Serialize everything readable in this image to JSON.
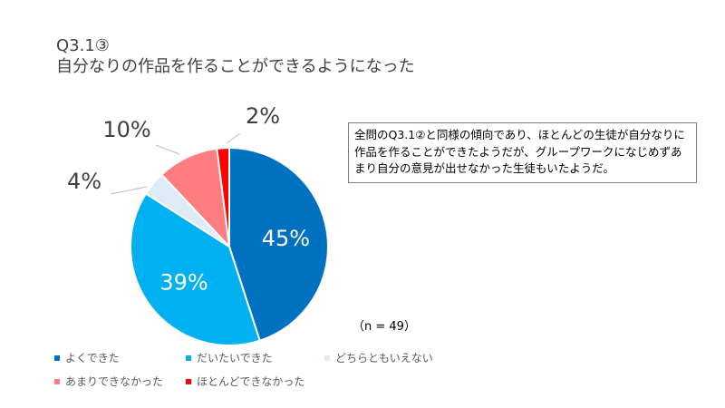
{
  "title": {
    "line1": "Q3.1③",
    "line2": "自分なりの作品を作ることができるようになった"
  },
  "note": "全問のQ3.1②と同様の傾向であり、ほとんどの生徒が自分なりに作品を作ることができたようだが、グループワークになじめずあまり自分の意見が出せなかった生徒もいたようだ。",
  "sample_size_label": "（n = 49）",
  "chart_data": {
    "type": "pie",
    "title": "自分なりの作品を作ることができるようになった",
    "n": 49,
    "start_angle_deg": 0,
    "direction": "clockwise",
    "slices": [
      {
        "label": "よくできた",
        "value": 45,
        "display": "45%",
        "color": "#0070c0",
        "label_inside": true
      },
      {
        "label": "だいたいできた",
        "value": 39,
        "display": "39%",
        "color": "#00b0f0",
        "label_inside": true
      },
      {
        "label": "どちらともいえない",
        "value": 4,
        "display": "4%",
        "color": "#ddebf7",
        "label_inside": false
      },
      {
        "label": "あまりできなかった",
        "value": 10,
        "display": "10%",
        "color": "#ff7c80",
        "label_inside": false
      },
      {
        "label": "ほとんどできなかった",
        "value": 2,
        "display": "2%",
        "color": "#ff0000",
        "label_inside": false
      }
    ],
    "legend": [
      "よくできた",
      "だいたいできた",
      "どちらともいえない",
      "あまりできなかった",
      "ほとんどできなかった"
    ],
    "legend_position": "bottom"
  }
}
